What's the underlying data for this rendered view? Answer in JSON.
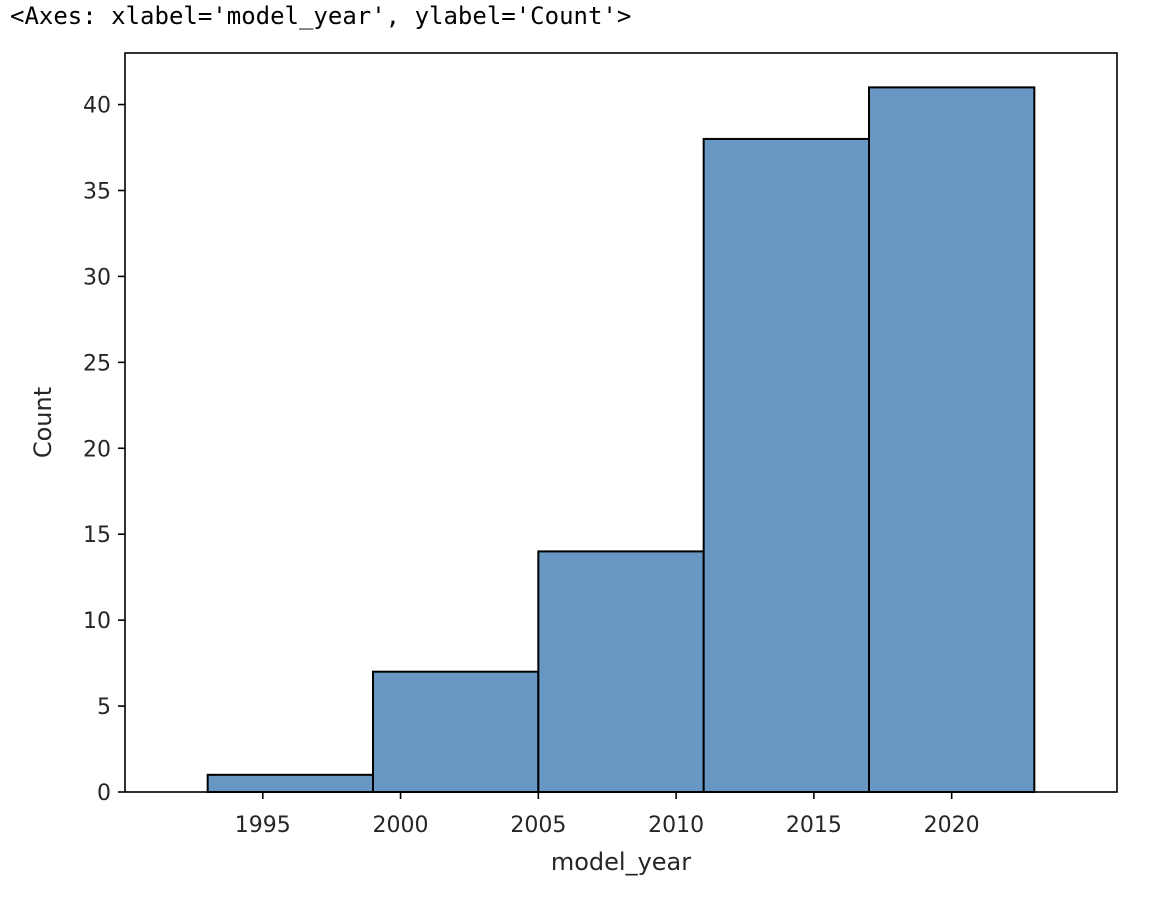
{
  "output_repr": "<Axes: xlabel='model_year', ylabel='Count'>",
  "chart_data": {
    "type": "bar",
    "title": "",
    "xlabel": "model_year",
    "ylabel": "Count",
    "bins": [
      {
        "x0": 1993,
        "x1": 1999,
        "count": 1
      },
      {
        "x0": 1999,
        "x1": 2005,
        "count": 7
      },
      {
        "x0": 2005,
        "x1": 2011,
        "count": 14
      },
      {
        "x0": 2011,
        "x1": 2017,
        "count": 38
      },
      {
        "x0": 2017,
        "x1": 2023,
        "count": 41
      }
    ],
    "xlim": [
      1990,
      2026
    ],
    "ylim": [
      0,
      43
    ],
    "xticks": [
      1995,
      2000,
      2005,
      2010,
      2015,
      2020
    ],
    "yticks": [
      0,
      5,
      10,
      15,
      20,
      25,
      30,
      35,
      40
    ],
    "grid": false,
    "bar_color": "#6897c4",
    "edge_color": "#000000"
  }
}
